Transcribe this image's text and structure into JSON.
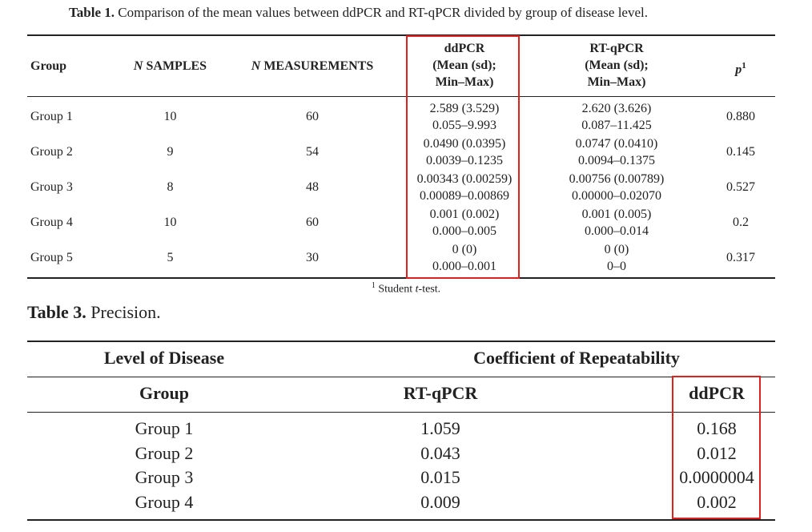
{
  "table1": {
    "caption_label": "Table 1.",
    "caption_text": " Comparison of the mean values between ddPCR and RT-qPCR divided by group of disease level.",
    "headers": {
      "group": "Group",
      "n_samples_n": "N",
      "n_samples_rest": " SAMPLES",
      "n_measure_n": "N",
      "n_measure_rest": " MEASUREMENTS",
      "ddpcr_l1": "ddPCR",
      "ddpcr_l2": "(Mean (sd);",
      "ddpcr_l3": "Min–Max)",
      "rtqpcr_l1": "RT-qPCR",
      "rtqpcr_l2": "(Mean (sd);",
      "rtqpcr_l3": "Min–Max)",
      "p": "p",
      "p_sup": "1"
    },
    "rows": [
      {
        "group": "Group 1",
        "samples": "10",
        "measurements": "60",
        "dd_mean": "2.589 (3.529)",
        "dd_range": "0.055–9.993",
        "rt_mean": "2.620 (3.626)",
        "rt_range": "0.087–11.425",
        "p": "0.880"
      },
      {
        "group": "Group 2",
        "samples": "9",
        "measurements": "54",
        "dd_mean": "0.0490 (0.0395)",
        "dd_range": "0.0039–0.1235",
        "rt_mean": "0.0747 (0.0410)",
        "rt_range": "0.0094–0.1375",
        "p": "0.145"
      },
      {
        "group": "Group 3",
        "samples": "8",
        "measurements": "48",
        "dd_mean": "0.00343 (0.00259)",
        "dd_range": "0.00089–0.00869",
        "rt_mean": "0.00756 (0.00789)",
        "rt_range": "0.00000–0.02070",
        "p": "0.527"
      },
      {
        "group": "Group 4",
        "samples": "10",
        "measurements": "60",
        "dd_mean": "0.001 (0.002)",
        "dd_range": "0.000–0.005",
        "rt_mean": "0.001 (0.005)",
        "rt_range": "0.000–0.014",
        "p": "0.2"
      },
      {
        "group": "Group 5",
        "samples": "5",
        "measurements": "30",
        "dd_mean": "0 (0)",
        "dd_range": "0.000–0.001",
        "rt_mean": "0 (0)",
        "rt_range": "0–0",
        "p": "0.317"
      }
    ],
    "footnote_sup": "1",
    "footnote_text": " Student ",
    "footnote_italic": "t",
    "footnote_end": "-test.",
    "highlight_color": "#e01f1f"
  },
  "table3": {
    "caption_label": "Table 3.",
    "caption_text": " Precision.",
    "header_top_left": "Level of Disease",
    "header_top_right": "Coefficient of Repeatability",
    "header_group": "Group",
    "header_rtqpcr": "RT-qPCR",
    "header_ddpcr": "ddPCR",
    "rows": [
      {
        "group": "Group 1",
        "rtqpcr": "1.059",
        "ddpcr": "0.168"
      },
      {
        "group": "Group 2",
        "rtqpcr": "0.043",
        "ddpcr": "0.012"
      },
      {
        "group": "Group 3",
        "rtqpcr": "0.015",
        "ddpcr": "0.0000004"
      },
      {
        "group": "Group 4",
        "rtqpcr": "0.009",
        "ddpcr": "0.002"
      }
    ]
  }
}
